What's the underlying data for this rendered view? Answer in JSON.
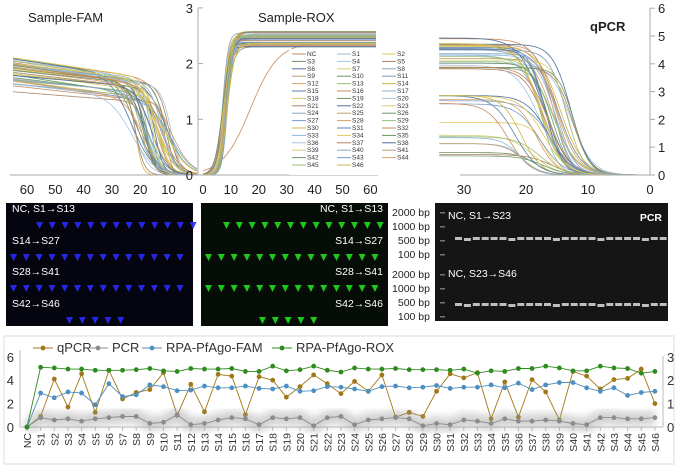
{
  "panels": {
    "fam_title": "Sample-FAM",
    "rox_title": "Sample-ROX",
    "qpcr_title": "qPCR"
  },
  "top_axes": {
    "fam_x_ticks": [
      "60",
      "50",
      "40",
      "30",
      "20",
      "10",
      "0"
    ],
    "rox_x_ticks": [
      "0",
      "10",
      "20",
      "30",
      "40",
      "50",
      "60"
    ],
    "shared_y_ticks": [
      "0",
      "1",
      "2",
      "3"
    ],
    "qpcr_x_ticks": [
      "30",
      "20",
      "10",
      "0"
    ],
    "qpcr_y_ticks": [
      "0",
      "1",
      "2",
      "3",
      "4",
      "5",
      "6"
    ]
  },
  "rox_legend": [
    "NC",
    "S1",
    "S2",
    "S3",
    "S4",
    "S5",
    "S6",
    "S7",
    "S8",
    "S9",
    "S10",
    "S11",
    "S12",
    "S13",
    "S14",
    "S15",
    "S16",
    "S17",
    "S18",
    "S19",
    "S20",
    "S21",
    "S22",
    "S23",
    "S24",
    "S25",
    "S26",
    "S27",
    "S28",
    "S29",
    "S30",
    "S31",
    "S32",
    "S33",
    "S34",
    "S35",
    "S36",
    "S37",
    "S38",
    "S39",
    "S40",
    "S41",
    "S42",
    "S43",
    "S44",
    "S45",
    "S46"
  ],
  "gels": {
    "fam": {
      "rows": [
        {
          "label": "NC, S1→S13",
          "bands": 13
        },
        {
          "label": "S14→S27",
          "bands": 14
        },
        {
          "label": "S28→S41",
          "bands": 14
        },
        {
          "label": "S42→S46",
          "bands": 5
        }
      ],
      "band_color": "#2a2aff"
    },
    "rox": {
      "rows": [
        {
          "label": "NC, S1→S13",
          "bands": 13
        },
        {
          "label": "S14→S27",
          "bands": 14
        },
        {
          "label": "S28→S41",
          "bands": 14
        },
        {
          "label": "S42→S46",
          "bands": 5
        }
      ],
      "band_color": "#22dd22"
    },
    "pcr": {
      "title": "PCR",
      "rows": [
        {
          "label": "NC, S1→S23"
        },
        {
          "label": "NC, S23→S46"
        }
      ],
      "ladder": [
        "2000 bp",
        "1000 bp",
        "500 bp",
        "100 bp"
      ]
    }
  },
  "chart_data": {
    "type": "line",
    "categories": [
      "NC",
      "S1",
      "S2",
      "S3",
      "S4",
      "S5",
      "S6",
      "S7",
      "S8",
      "S9",
      "S10",
      "S11",
      "S12",
      "S13",
      "S14",
      "S15",
      "S16",
      "S17",
      "S18",
      "S19",
      "S20",
      "S21",
      "S22",
      "S23",
      "S24",
      "S25",
      "S26",
      "S27",
      "S28",
      "S29",
      "S30",
      "S31",
      "S32",
      "S33",
      "S34",
      "S35",
      "S36",
      "S37",
      "S38",
      "S39",
      "S40",
      "S41",
      "S42",
      "S43",
      "S44",
      "S45",
      "S46"
    ],
    "y_left": {
      "range": [
        0,
        6
      ],
      "ticks": [
        "0",
        "2",
        "4",
        "6"
      ]
    },
    "y_right": {
      "range": [
        0,
        3
      ],
      "ticks": [
        "0",
        "1",
        "2",
        "3"
      ]
    },
    "legend_position": "top-left",
    "series": [
      {
        "name": "qPCR",
        "axis": "left",
        "color": "#a07818",
        "values": [
          0,
          0.9,
          4.1,
          1.7,
          4.55,
          1.25,
          4.85,
          2.4,
          2.95,
          3.2,
          4.65,
          1.0,
          3.65,
          1.3,
          4.5,
          4.35,
          1.05,
          4.3,
          4.0,
          2.55,
          3.45,
          4.45,
          3.7,
          2.85,
          3.9,
          3.05,
          4.45,
          0.85,
          1.25,
          0.9,
          3.05,
          4.55,
          4.2,
          4.65,
          0.7,
          3.85,
          0.85,
          4.05,
          3.0,
          0.6,
          4.75,
          4.35,
          3.25,
          4.05,
          4.15,
          4.95,
          2.0
        ]
      },
      {
        "name": "PCR",
        "axis": "right",
        "color": "#8c8c8c",
        "values": [
          0,
          0.4,
          0.3,
          0.35,
          0.25,
          0.35,
          0.4,
          0.45,
          0.45,
          0.15,
          0.2,
          0.52,
          0.1,
          0.15,
          0.3,
          0.4,
          0.35,
          0.1,
          0.4,
          0.35,
          0.4,
          0.05,
          0.4,
          0.45,
          0.1,
          0.3,
          0.35,
          0.4,
          0.35,
          0.05,
          0.15,
          0.1,
          0.3,
          0.25,
          0.15,
          0.35,
          0.25,
          0.25,
          0.3,
          0.25,
          0.15,
          0.1,
          0.4,
          0.4,
          0.35,
          0.35,
          0.4
        ]
      },
      {
        "name": "RPA-PfAgo-FAM",
        "axis": "left",
        "color": "#4f8fc0",
        "values": [
          0,
          2.9,
          2.5,
          3.0,
          2.9,
          1.9,
          3.7,
          2.6,
          2.75,
          3.6,
          3.45,
          3.1,
          3.15,
          3.5,
          3.35,
          3.35,
          3.5,
          3.3,
          3.25,
          3.5,
          3.05,
          3.1,
          3.45,
          3.4,
          3.25,
          3.05,
          3.45,
          3.5,
          3.35,
          3.4,
          3.55,
          3.3,
          3.4,
          3.4,
          3.6,
          3.35,
          3.75,
          3.2,
          3.6,
          3.8,
          3.8,
          3.35,
          3.05,
          3.35,
          2.7,
          2.95,
          3.05
        ]
      },
      {
        "name": "RPA-PfAgo-ROX",
        "axis": "left",
        "color": "#2e8b1e",
        "values": [
          0,
          5.1,
          5.05,
          4.95,
          4.95,
          4.85,
          4.85,
          4.85,
          4.9,
          5.0,
          4.8,
          4.75,
          5.0,
          4.95,
          4.95,
          5.0,
          4.75,
          4.75,
          5.2,
          4.8,
          4.9,
          5.2,
          4.85,
          4.7,
          5.05,
          4.95,
          4.95,
          5.0,
          4.9,
          4.9,
          4.9,
          4.85,
          4.95,
          4.6,
          4.8,
          4.75,
          5.0,
          5.0,
          5.2,
          5.05,
          4.8,
          4.8,
          5.2,
          5.05,
          5.0,
          4.6,
          4.75
        ]
      }
    ]
  }
}
